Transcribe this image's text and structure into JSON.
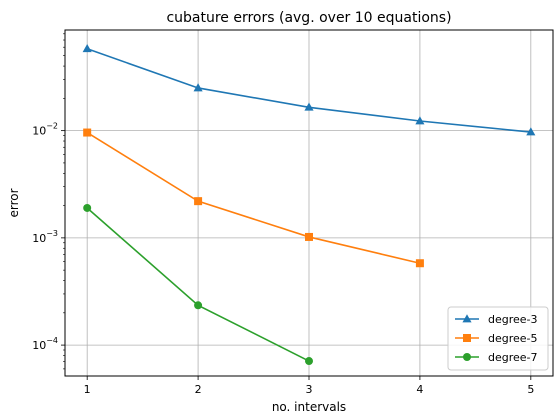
{
  "chart_data": {
    "type": "line",
    "title": "cubature errors (avg. over 10 equations)",
    "xlabel": "no. intervals",
    "ylabel": "error",
    "x_ticks": [
      "1",
      "2",
      "3",
      "4",
      "5"
    ],
    "y_ticks": [
      {
        "base": "10",
        "exp": "−4",
        "value": 0.0001
      },
      {
        "base": "10",
        "exp": "−3",
        "value": 0.001
      },
      {
        "base": "10",
        "exp": "−2",
        "value": 0.01
      }
    ],
    "yscale": "log",
    "xlim": [
      0.8,
      5.2
    ],
    "ylim": [
      5.15e-05,
      0.0868
    ],
    "grid": true,
    "legend_position": "lower-right",
    "series": [
      {
        "name": "degree-3",
        "color": "#1f77b4",
        "marker": "triangle",
        "x": [
          1,
          2,
          3,
          4,
          5
        ],
        "y": [
          0.058,
          0.025,
          0.0165,
          0.0123,
          0.0097
        ]
      },
      {
        "name": "degree-5",
        "color": "#ff7f0e",
        "marker": "square",
        "x": [
          1,
          2,
          3,
          4
        ],
        "y": [
          0.0096,
          0.0022,
          0.00102,
          0.00058
        ]
      },
      {
        "name": "degree-7",
        "color": "#2ca02c",
        "marker": "circle",
        "x": [
          1,
          2,
          3
        ],
        "y": [
          0.0019,
          0.000235,
          7.1e-05
        ]
      }
    ]
  }
}
